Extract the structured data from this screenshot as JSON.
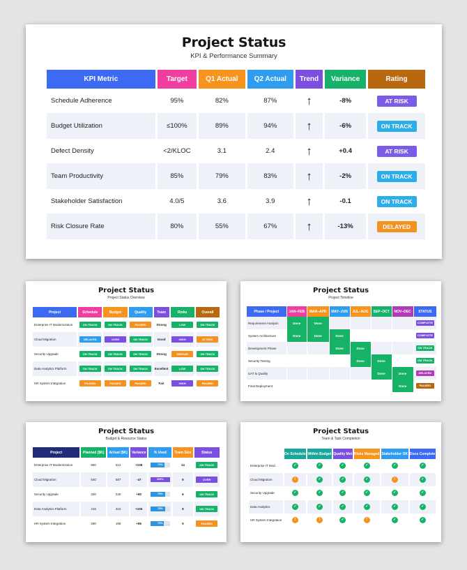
{
  "main": {
    "title": "Project Status",
    "subtitle": "KPI & Performance Summary",
    "headers": [
      "KPI Metric",
      "Target",
      "Q1 Actual",
      "Q2 Actual",
      "Trend",
      "Variance",
      "Rating"
    ],
    "header_colors": [
      "#3d6af2",
      "#f03e9e",
      "#f7941d",
      "#2e9df0",
      "#7b4fe0",
      "#17b26a",
      "#b8690f"
    ],
    "rows": [
      {
        "metric": "Schedule Adherence",
        "target": "95%",
        "q1": "82%",
        "q2": "87%",
        "trend": "↑",
        "variance": "-8%",
        "rating": "AT RISK",
        "rating_color": "#7b5ce6"
      },
      {
        "metric": "Budget Utilization",
        "target": "≤100%",
        "q1": "89%",
        "q2": "94%",
        "trend": "↑",
        "variance": "-6%",
        "rating": "ON TRACK",
        "rating_color": "#2eaee8"
      },
      {
        "metric": "Defect Density",
        "target": "<2/KLOC",
        "q1": "3.1",
        "q2": "2.4",
        "trend": "↑",
        "variance": "+0.4",
        "rating": "AT RISK",
        "rating_color": "#7b5ce6"
      },
      {
        "metric": "Team Productivity",
        "target": "85%",
        "q1": "79%",
        "q2": "83%",
        "trend": "↑",
        "variance": "-2%",
        "rating": "ON TRACK",
        "rating_color": "#2eaee8"
      },
      {
        "metric": "Stakeholder Satisfaction",
        "target": "4.0/5",
        "q1": "3.6",
        "q2": "3.9",
        "trend": "↑",
        "variance": "-0.1",
        "rating": "ON TRACK",
        "rating_color": "#2eaee8"
      },
      {
        "metric": "Risk Closure Rate",
        "target": "80%",
        "q1": "55%",
        "q2": "67%",
        "trend": "↑",
        "variance": "-13%",
        "rating": "DELAYED",
        "rating_color": "#f39220"
      }
    ]
  },
  "overview": {
    "title": "Project Status",
    "subtitle": "Project Status Overview",
    "headers": [
      "Project",
      "Schedule",
      "Budget",
      "Quality",
      "Team",
      "Risks",
      "Overall"
    ],
    "header_colors": [
      "#3d6af2",
      "#f03e9e",
      "#f7941d",
      "#2e9df0",
      "#7b4fe0",
      "#17b26a",
      "#b8690f"
    ],
    "rows": [
      {
        "project": "Enterprise IT Modernization",
        "schedule": {
          "t": "ON TRACK",
          "c": "#17b26a"
        },
        "budget": {
          "t": "ON TRACK",
          "c": "#17b26a"
        },
        "quality": {
          "t": "PAUSED",
          "c": "#f39220"
        },
        "team": "Strong",
        "risks": {
          "t": "LOW",
          "c": "#17b26a"
        },
        "overall": {
          "t": "ON TRACK",
          "c": "#17b26a"
        }
      },
      {
        "project": "Cloud Migration",
        "schedule": {
          "t": "DELAYED",
          "c": "#2e9df0"
        },
        "budget": {
          "t": "OVER",
          "c": "#7b4fe0"
        },
        "quality": {
          "t": "ON TRACK",
          "c": "#17b26a"
        },
        "team": "Good",
        "risks": {
          "t": "HIGH",
          "c": "#7b4fe0"
        },
        "overall": {
          "t": "AT RISK",
          "c": "#f39220"
        }
      },
      {
        "project": "Security Upgrade",
        "schedule": {
          "t": "ON TRACK",
          "c": "#17b26a"
        },
        "budget": {
          "t": "ON TRACK",
          "c": "#17b26a"
        },
        "quality": {
          "t": "ON TRACK",
          "c": "#17b26a"
        },
        "team": "Strong",
        "risks": {
          "t": "MEDIUM",
          "c": "#f39220"
        },
        "overall": {
          "t": "ON TRACK",
          "c": "#17b26a"
        }
      },
      {
        "project": "Data Analytics Platform",
        "schedule": {
          "t": "ON TRACK",
          "c": "#17b26a"
        },
        "budget": {
          "t": "ON TRACK",
          "c": "#17b26a"
        },
        "quality": {
          "t": "ON TRACK",
          "c": "#17b26a"
        },
        "team": "Excellent",
        "risks": {
          "t": "LOW",
          "c": "#17b26a"
        },
        "overall": {
          "t": "ON TRACK",
          "c": "#17b26a"
        }
      },
      {
        "project": "HR System Integration",
        "schedule": {
          "t": "PAUSED",
          "c": "#f39220"
        },
        "budget": {
          "t": "PAUSED",
          "c": "#f39220"
        },
        "quality": {
          "t": "PAUSED",
          "c": "#f39220"
        },
        "team": "Fair",
        "risks": {
          "t": "HIGH",
          "c": "#7b4fe0"
        },
        "overall": {
          "t": "PAUSED",
          "c": "#f39220"
        }
      }
    ]
  },
  "timeline": {
    "title": "Project Status",
    "subtitle": "Project Timeline",
    "headers": [
      "Phase / Project",
      "JAN–FEB",
      "MAR–APR",
      "MAY–JUN",
      "JUL–AUG",
      "SEP–OCT",
      "NOV–DEC",
      "STATUS"
    ],
    "header_colors": [
      "#3d6af2",
      "#f03e9e",
      "#f7941d",
      "#2e9df0",
      "#f7941d",
      "#17b26a",
      "#b03ab8",
      "#3d6af2"
    ],
    "rows": [
      {
        "phase": "Requirement Analysis",
        "done": [
          1,
          1,
          0,
          0,
          0,
          0
        ],
        "status": {
          "t": "COMPLETE",
          "c": "#7b4fe0"
        }
      },
      {
        "phase": "System Architecture",
        "done": [
          1,
          1,
          1,
          0,
          0,
          0
        ],
        "status": {
          "t": "COMPLETE",
          "c": "#7b4fe0"
        }
      },
      {
        "phase": "Development Phase",
        "done": [
          0,
          0,
          1,
          1,
          0,
          0
        ],
        "status": {
          "t": "ON TRACK",
          "c": "#17b26a"
        }
      },
      {
        "phase": "Security Testing",
        "done": [
          0,
          0,
          0,
          1,
          1,
          0
        ],
        "status": {
          "t": "ON TRACK",
          "c": "#17b26a"
        }
      },
      {
        "phase": "UAT & Quality",
        "done": [
          0,
          0,
          0,
          0,
          1,
          1
        ],
        "status": {
          "t": "DELAYED",
          "c": "#b03ab8"
        }
      },
      {
        "phase": "Final Deployment",
        "done": [
          0,
          0,
          0,
          0,
          0,
          1
        ],
        "status": {
          "t": "PAUSED",
          "c": "#b8690f"
        }
      }
    ],
    "done_label": "Done"
  },
  "budget": {
    "title": "Project Status",
    "subtitle": "Budget & Resource Status",
    "headers": [
      "Project",
      "Planned ($K)",
      "Actual ($K)",
      "Variance",
      "% Used",
      "Team Size",
      "Status"
    ],
    "header_colors": [
      "#1f2d78",
      "#17b26a",
      "#2e9df0",
      "#7b4fe0",
      "#2e9df0",
      "#f7941d",
      "#7b4fe0"
    ],
    "rows": [
      {
        "project": "Enterprise IT Modernization",
        "planned": "850",
        "actual": "612",
        "variance": "+238",
        "used": "72%",
        "used_frac": 0.72,
        "team": "14",
        "status": {
          "t": "ON TRACK",
          "c": "#17b26a"
        }
      },
      {
        "project": "Cloud Migration",
        "planned": "540",
        "actual": "587",
        "variance": "-47",
        "used": "109%",
        "used_frac": 1.0,
        "team": "9",
        "status": {
          "t": "OVER",
          "c": "#7b4fe0"
        }
      },
      {
        "project": "Security Upgrade",
        "planned": "320",
        "actual": "240",
        "variance": "+80",
        "used": "75%",
        "used_frac": 0.75,
        "team": "6",
        "status": {
          "t": "ON TRACK",
          "c": "#17b26a"
        }
      },
      {
        "project": "Data Analytics Platform",
        "planned": "415",
        "actual": "310",
        "variance": "+105",
        "used": "75%",
        "used_frac": 0.75,
        "team": "8",
        "status": {
          "t": "ON TRACK",
          "c": "#17b26a"
        }
      },
      {
        "project": "HR System Integration",
        "planned": "280",
        "actual": "195",
        "variance": "+85",
        "used": "70%",
        "used_frac": 0.7,
        "team": "5",
        "status": {
          "t": "PAUSED",
          "c": "#f39220"
        }
      }
    ]
  },
  "team": {
    "title": "Project Status",
    "subtitle": "Team & Task Completion",
    "headers": [
      "",
      "On Schedule",
      "Within Budget",
      "Quality Met",
      "Risks Managed",
      "Stakeholder OK",
      "Docs Complete"
    ],
    "header_colors": [
      "#ffffff",
      "#1aa69a",
      "#1aa69a",
      "#7b4fe0",
      "#f7941d",
      "#2e9df0",
      "#3d6af2"
    ],
    "rows": [
      {
        "project": "Enterprise IT Mod.",
        "marks": [
          "g",
          "g",
          "g",
          "g",
          "g",
          "g"
        ]
      },
      {
        "project": "Cloud Migration",
        "marks": [
          "o",
          "g",
          "g",
          "g",
          "o",
          "g"
        ]
      },
      {
        "project": "Security Upgrade",
        "marks": [
          "g",
          "g",
          "g",
          "g",
          "g",
          "g"
        ]
      },
      {
        "project": "Data Analytics",
        "marks": [
          "g",
          "g",
          "g",
          "g",
          "g",
          "g"
        ]
      },
      {
        "project": "HR System Integration",
        "marks": [
          "o",
          "o",
          "g",
          "o",
          "g",
          "g"
        ]
      }
    ],
    "mark_colors": {
      "g": "#17b26a",
      "o": "#f39220"
    },
    "mark_glyphs": {
      "g": "✓",
      "o": "!"
    }
  }
}
